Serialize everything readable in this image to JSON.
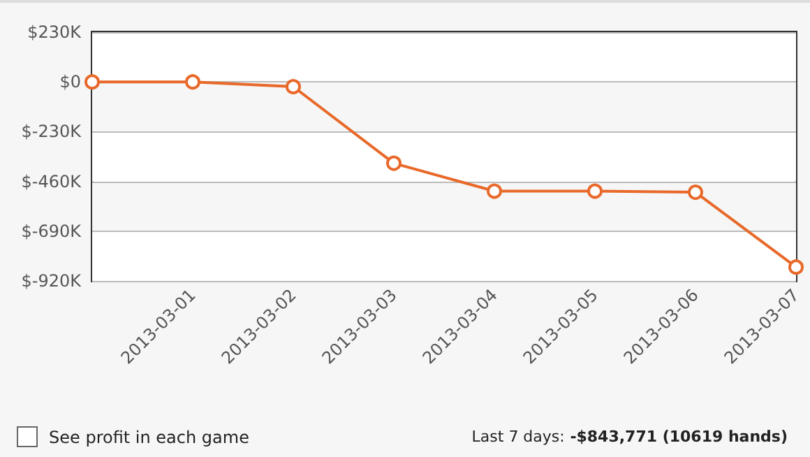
{
  "chart_data": {
    "type": "line",
    "categories": [
      null,
      "2013-03-01",
      "2013-03-02",
      "2013-03-03",
      "2013-03-04",
      "2013-03-05",
      "2013-03-06",
      "2013-03-07"
    ],
    "series": [
      {
        "color": "#e8692a",
        "values": [
          0,
          0,
          -22000,
          -376000,
          -505000,
          -505000,
          -510000,
          -856000
        ]
      }
    ],
    "ylim": [
      -920000,
      230000
    ],
    "yticks": [
      {
        "value": -920000,
        "label": "$-920K"
      },
      {
        "value": -690000,
        "label": "$-690K"
      },
      {
        "value": -460000,
        "label": "$-460K"
      },
      {
        "value": -230000,
        "label": "$-230K"
      },
      {
        "value": 0,
        "label": "$0"
      },
      {
        "value": 230000,
        "label": "$230K"
      }
    ],
    "grid": "y",
    "marker": "circle",
    "line_style": "solid",
    "annotations": [
      "See profit in each game",
      "Last 7 days: -$843,771 (10619 hands)"
    ]
  }
}
